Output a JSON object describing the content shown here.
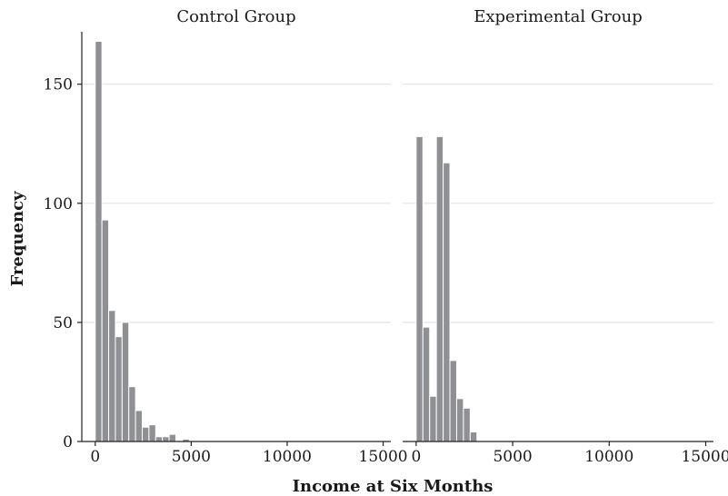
{
  "chart_data": {
    "type": "bar",
    "xlabel": "Income at Six Months",
    "ylabel": "Frequency",
    "ylim": [
      0,
      172
    ],
    "xlim": [
      -700,
      15400
    ],
    "bin_width": 350,
    "y_ticks": [
      0,
      50,
      100,
      150
    ],
    "y_tick_labels": [
      "0",
      "50",
      "100",
      "150"
    ],
    "x_ticks": [
      0,
      5000,
      10000,
      15000
    ],
    "x_tick_labels": [
      "0",
      "5000",
      "10000",
      "15000"
    ],
    "grid": true,
    "bar_color": "#8f9094",
    "panels": [
      {
        "title": "Control Group",
        "bins": [
          {
            "x": 175,
            "count": 168
          },
          {
            "x": 525,
            "count": 93
          },
          {
            "x": 875,
            "count": 55
          },
          {
            "x": 1225,
            "count": 44
          },
          {
            "x": 1575,
            "count": 50
          },
          {
            "x": 1925,
            "count": 23
          },
          {
            "x": 2275,
            "count": 13
          },
          {
            "x": 2625,
            "count": 6
          },
          {
            "x": 2975,
            "count": 7
          },
          {
            "x": 3325,
            "count": 2
          },
          {
            "x": 3675,
            "count": 2
          },
          {
            "x": 4025,
            "count": 3
          },
          {
            "x": 4375,
            "count": 0
          },
          {
            "x": 4725,
            "count": 1
          }
        ]
      },
      {
        "title": "Experimental Group",
        "bins": [
          {
            "x": 175,
            "count": 128
          },
          {
            "x": 525,
            "count": 48
          },
          {
            "x": 875,
            "count": 19
          },
          {
            "x": 1225,
            "count": 128
          },
          {
            "x": 1575,
            "count": 117
          },
          {
            "x": 1925,
            "count": 34
          },
          {
            "x": 2275,
            "count": 18
          },
          {
            "x": 2625,
            "count": 14
          },
          {
            "x": 2975,
            "count": 4
          }
        ]
      }
    ]
  }
}
